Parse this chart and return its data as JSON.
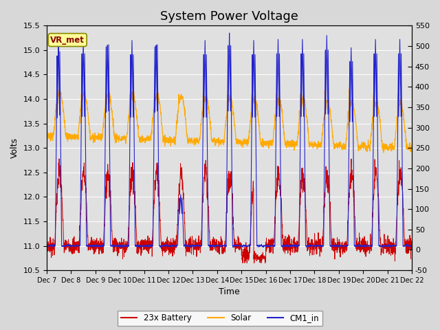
{
  "title": "System Power Voltage",
  "xlabel": "Time",
  "ylabel_left": "Volts",
  "ylim_left": [
    10.5,
    15.5
  ],
  "ylim_right": [
    -50,
    550
  ],
  "x_tick_labels": [
    "Dec 7",
    "Dec 8",
    "Dec 9",
    "Dec 10",
    "Dec 11",
    "Dec 12",
    "Dec 13",
    "Dec 14",
    "Dec 15",
    "Dec 16",
    "Dec 17",
    "Dec 18",
    "Dec 19",
    "Dec 20",
    "Dec 21",
    "Dec 22"
  ],
  "legend_labels": [
    "23x Battery",
    "Solar",
    "CM1_in"
  ],
  "line_colors": {
    "battery": "#cc0000",
    "solar": "#ffaa00",
    "cm1": "#2222cc"
  },
  "annotation_text": "VR_met",
  "annotation_bg": "#ffff99",
  "annotation_border": "#888800",
  "fig_facecolor": "#d8d8d8",
  "plot_facecolor": "#e0e0e0",
  "grid_color": "#ffffff",
  "title_fontsize": 13,
  "axis_fontsize": 9,
  "tick_fontsize": 8,
  "right_yticks": [
    -50,
    0,
    50,
    100,
    150,
    200,
    250,
    300,
    350,
    400,
    450,
    500,
    550
  ],
  "left_yticks": [
    10.5,
    11.0,
    11.5,
    12.0,
    12.5,
    13.0,
    13.5,
    14.0,
    14.5,
    15.0,
    15.5
  ]
}
